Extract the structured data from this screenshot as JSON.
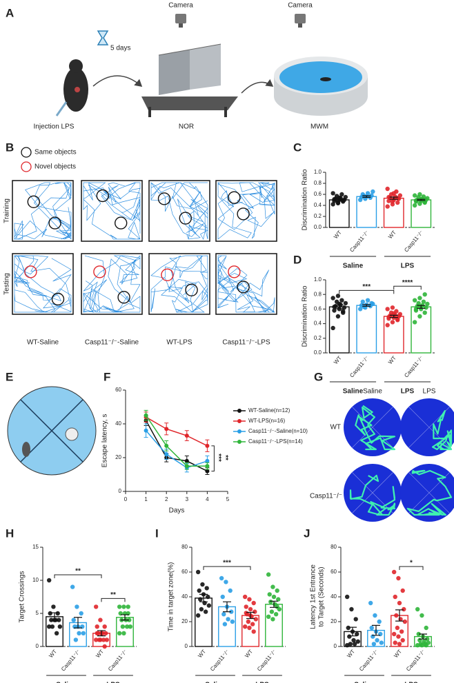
{
  "panel_labels": [
    "A",
    "B",
    "C",
    "D",
    "E",
    "F",
    "G",
    "H",
    "I",
    "J"
  ],
  "figure_a": {
    "camera_labels": [
      "Camera",
      "Camera"
    ],
    "duration": "5 days",
    "steps": [
      "Injection LPS",
      "NOR",
      "MWM"
    ]
  },
  "figure_b": {
    "legend": [
      "Same objects",
      "Novel objects"
    ],
    "rows": [
      "Training",
      "Testing"
    ],
    "columns": [
      "WT-Saline",
      "Casp11⁻/⁻-Saline",
      "WT-LPS",
      "Casp11⁻/⁻-LPS"
    ]
  },
  "figure_g": {
    "columns": [
      "Saline",
      "LPS"
    ],
    "rows": [
      "WT",
      "Casp11⁻/⁻"
    ]
  },
  "chart_data": [
    {
      "type": "bar",
      "ylabel": "Discrimination Ratio",
      "categories": [
        "WT",
        "Casp11⁻/⁻",
        "WT",
        "Casp11⁻/⁻"
      ],
      "group_labels": [
        "Saline",
        "LPS"
      ],
      "colors": [
        "#111111",
        "#2a9fe6",
        "#e0262b",
        "#2fb53a"
      ],
      "values": [
        0.5,
        0.56,
        0.53,
        0.5
      ],
      "errors": [
        0.02,
        0.015,
        0.02,
        0.01
      ],
      "points": [
        [
          0.42,
          0.45,
          0.47,
          0.48,
          0.5,
          0.5,
          0.52,
          0.53,
          0.55,
          0.57,
          0.6,
          0.62,
          0.44,
          0.49,
          0.51,
          0.54
        ],
        [
          0.5,
          0.52,
          0.54,
          0.55,
          0.56,
          0.58,
          0.6,
          0.62,
          0.65,
          0.57
        ],
        [
          0.38,
          0.42,
          0.45,
          0.48,
          0.5,
          0.52,
          0.54,
          0.56,
          0.58,
          0.6,
          0.65,
          0.7,
          0.47,
          0.53,
          0.55,
          0.62
        ],
        [
          0.4,
          0.43,
          0.45,
          0.47,
          0.48,
          0.5,
          0.5,
          0.52,
          0.53,
          0.55,
          0.56,
          0.58,
          0.6,
          0.46,
          0.49,
          0.51
        ]
      ],
      "ylim": [
        0,
        1.0
      ],
      "yticks": [
        {
          "value": 0,
          "label": "0.0"
        },
        0.2,
        0.4,
        0.6,
        0.8,
        {
          "value": 1.0,
          "label": "1.0"
        }
      ],
      "significance": []
    },
    {
      "type": "bar",
      "ylabel": "Discrimination Ratio",
      "categories": [
        "WT",
        "Casp11⁻/⁻",
        "WT",
        "Casp11⁻/⁻"
      ],
      "group_labels": [
        "Saline",
        "LPS"
      ],
      "colors": [
        "#111111",
        "#2a9fe6",
        "#e0262b",
        "#2fb53a"
      ],
      "values": [
        0.63,
        0.65,
        0.5,
        0.63
      ],
      "errors": [
        0.025,
        0.012,
        0.015,
        0.02
      ],
      "points": [
        [
          0.34,
          0.5,
          0.55,
          0.58,
          0.6,
          0.62,
          0.64,
          0.66,
          0.68,
          0.7,
          0.72,
          0.75,
          0.78,
          0.57,
          0.63,
          0.67
        ],
        [
          0.6,
          0.62,
          0.64,
          0.65,
          0.66,
          0.68,
          0.7,
          0.72,
          0.67,
          0.63
        ],
        [
          0.38,
          0.42,
          0.45,
          0.47,
          0.48,
          0.5,
          0.51,
          0.52,
          0.53,
          0.55,
          0.57,
          0.6,
          0.62,
          0.46,
          0.49,
          0.54
        ],
        [
          0.42,
          0.5,
          0.55,
          0.58,
          0.6,
          0.62,
          0.64,
          0.65,
          0.67,
          0.68,
          0.7,
          0.72,
          0.75,
          0.8,
          0.6,
          0.63
        ]
      ],
      "ylim": [
        0,
        1.0
      ],
      "yticks": [
        {
          "value": 0,
          "label": "0.0"
        },
        0.2,
        0.4,
        0.6,
        0.8,
        {
          "value": 1.0,
          "label": "1.0"
        }
      ],
      "significance": [
        {
          "label": "***",
          "groups": [
            0,
            2
          ]
        },
        {
          "label": "****",
          "groups": [
            2,
            3
          ]
        }
      ]
    },
    {
      "type": "line",
      "xlabel": "Days",
      "ylabel": "Escape latency, s",
      "x": [
        1,
        2,
        3,
        4
      ],
      "series": [
        {
          "name": "WT-Saline(n=12)",
          "color": "#111111",
          "values": [
            42,
            20,
            18,
            12
          ],
          "errors": [
            3,
            2.5,
            3,
            2
          ]
        },
        {
          "name": "WT-LPS(n=16)",
          "color": "#e0262b",
          "values": [
            44,
            37,
            33,
            27
          ],
          "errors": [
            3,
            3.5,
            3,
            3.5
          ]
        },
        {
          "name": "Casp11⁻/⁻-Saline(n=10)",
          "color": "#2a9fe6",
          "values": [
            36,
            22,
            14,
            18
          ],
          "errors": [
            4,
            3,
            2.5,
            3
          ]
        },
        {
          "name": "Casp11⁻/⁻-LPS(n=14)",
          "color": "#2fb53a",
          "values": [
            45,
            27,
            15,
            15
          ],
          "errors": [
            3,
            3,
            2,
            2
          ]
        }
      ],
      "xlim": [
        0,
        5
      ],
      "xticks": [
        0,
        1,
        2,
        3,
        4,
        5
      ],
      "ylim": [
        0,
        60
      ],
      "yticks": [
        0,
        20,
        40,
        60
      ],
      "annotations": [
        {
          "text": "***",
          "color": "#111111"
        },
        {
          "text": "**",
          "color": "#2fb53a"
        }
      ]
    },
    {
      "type": "bar",
      "ylabel": "Target Crossings",
      "categories": [
        "WT",
        "Casp11⁻/⁻",
        "WT",
        "Casp11⁻/⁻"
      ],
      "group_labels": [
        "Saline",
        "LPS"
      ],
      "colors": [
        "#111111",
        "#2a9fe6",
        "#e0262b",
        "#2fb53a"
      ],
      "values": [
        4.5,
        3.6,
        2.0,
        4.4
      ],
      "errors": [
        0.6,
        0.8,
        0.4,
        0.4
      ],
      "points": [
        [
          10,
          6,
          5,
          5,
          4,
          4,
          4,
          4,
          3,
          3,
          2,
          3
        ],
        [
          9,
          6,
          5,
          4,
          3,
          3,
          3,
          2,
          2,
          1
        ],
        [
          6,
          4,
          3,
          3,
          2,
          2,
          2,
          2,
          1,
          1,
          1,
          1,
          1,
          0,
          2,
          2
        ],
        [
          6,
          6,
          6,
          5,
          5,
          4,
          4,
          4,
          3,
          3,
          3,
          2,
          2,
          5
        ]
      ],
      "ylim": [
        0,
        15
      ],
      "yticks": [
        0,
        5,
        10,
        15
      ],
      "significance": [
        {
          "label": "**",
          "groups": [
            0,
            2
          ]
        },
        {
          "label": "**",
          "groups": [
            2,
            3
          ]
        }
      ]
    },
    {
      "type": "bar",
      "ylabel": "Time in target zone(%)",
      "categories": [
        "WT",
        "Casp11⁻/⁻",
        "WT",
        "Casp11⁻/⁻"
      ],
      "group_labels": [
        "Saline",
        "LPS"
      ],
      "colors": [
        "#111111",
        "#2a9fe6",
        "#e0262b",
        "#2fb53a"
      ],
      "values": [
        39,
        32,
        25,
        34
      ],
      "errors": [
        3,
        4,
        2.5,
        2.5
      ],
      "points": [
        [
          60,
          50,
          47,
          45,
          42,
          40,
          38,
          35,
          33,
          30,
          28,
          25
        ],
        [
          55,
          52,
          45,
          40,
          32,
          28,
          26,
          22,
          20,
          18
        ],
        [
          40,
          38,
          35,
          32,
          30,
          28,
          26,
          24,
          22,
          20,
          18,
          16,
          15,
          12,
          27,
          25
        ],
        [
          58,
          48,
          45,
          42,
          40,
          38,
          36,
          34,
          30,
          28,
          26,
          24,
          22,
          32
        ]
      ],
      "ylim": [
        0,
        80
      ],
      "yticks": [
        0,
        20,
        40,
        60,
        80
      ],
      "significance": [
        {
          "label": "***",
          "groups": [
            0,
            2
          ]
        }
      ]
    },
    {
      "type": "bar",
      "ylabel": [
        "Latency 1st Entrance",
        "to Target (Seconds)"
      ],
      "categories": [
        "WT",
        "Casp11⁻/⁻",
        "WT",
        "Casp11⁻/⁻"
      ],
      "group_labels": [
        "Saline",
        "LPS"
      ],
      "colors": [
        "#111111",
        "#2a9fe6",
        "#e0262b",
        "#2fb53a"
      ],
      "values": [
        12,
        13,
        25,
        8
      ],
      "errors": [
        3.5,
        4,
        4.5,
        2
      ],
      "points": [
        [
          40,
          30,
          22,
          15,
          12,
          10,
          8,
          5,
          4,
          2,
          2,
          1
        ],
        [
          35,
          25,
          20,
          15,
          12,
          10,
          8,
          5,
          3,
          2
        ],
        [
          60,
          55,
          45,
          40,
          35,
          30,
          25,
          22,
          20,
          15,
          12,
          10,
          8,
          5,
          3,
          2
        ],
        [
          30,
          25,
          15,
          10,
          8,
          6,
          5,
          4,
          3,
          2,
          2,
          1,
          1,
          1
        ]
      ],
      "ylim": [
        0,
        80
      ],
      "yticks": [
        0,
        20,
        40,
        60,
        80
      ],
      "significance": [
        {
          "label": "*",
          "groups": [
            2,
            3
          ]
        }
      ]
    }
  ]
}
